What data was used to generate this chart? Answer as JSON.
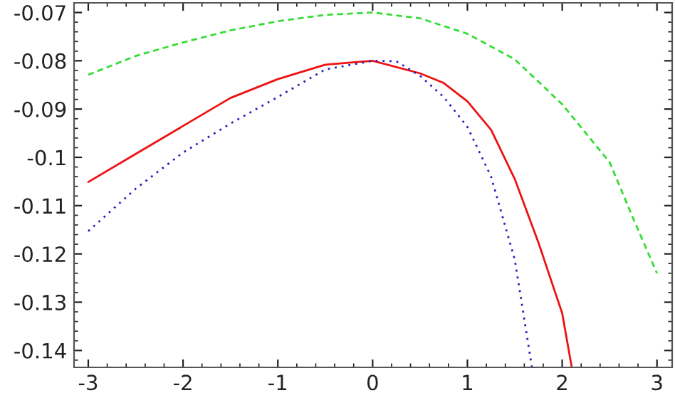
{
  "chart_data": {
    "type": "line",
    "series": [
      {
        "color": "#33dd33",
        "line_style": "dashed",
        "x": [
          -3,
          -2.5,
          -2,
          -1.5,
          -1,
          -0.5,
          0,
          0.5,
          1,
          1.5,
          2,
          2.5,
          2.75,
          3
        ],
        "values": [
          -0.0829,
          -0.079,
          -0.0762,
          -0.0737,
          -0.0718,
          -0.0705,
          -0.07,
          -0.0712,
          -0.0744,
          -0.0797,
          -0.089,
          -0.101,
          -0.1127,
          -0.124
        ]
      },
      {
        "color": "#ee1111",
        "line_style": "solid",
        "x": [
          -3,
          -2.5,
          -2,
          -1.5,
          -1,
          -0.5,
          0,
          0.5,
          0.75,
          1,
          1.25,
          1.5,
          1.75,
          2,
          2.1
        ],
        "values": [
          -0.1051,
          -0.0993,
          -0.0935,
          -0.0877,
          -0.0838,
          -0.0808,
          -0.08,
          -0.0826,
          -0.0846,
          -0.0884,
          -0.0943,
          -0.1045,
          -0.1177,
          -0.1323,
          -0.1434
        ]
      },
      {
        "color": "#2222bb",
        "line_style": "dotted",
        "x": [
          -3,
          -2.5,
          -2,
          -1.5,
          -1,
          -0.5,
          0,
          0.25,
          0.5,
          0.75,
          1,
          1.25,
          1.5,
          1.68
        ],
        "values": [
          -0.1153,
          -0.1065,
          -0.099,
          -0.093,
          -0.0875,
          -0.0818,
          -0.08,
          -0.0801,
          -0.0831,
          -0.0875,
          -0.0937,
          -0.104,
          -0.1212,
          -0.1434
        ]
      }
    ],
    "xlim": [
      -3.15,
      3.16
    ],
    "ylim": [
      -0.1435,
      -0.068
    ],
    "xticks": [
      -3,
      -2,
      -1,
      0,
      1,
      2,
      3
    ],
    "yticks": [
      -0.14,
      -0.13,
      -0.12,
      -0.11,
      -0.1,
      -0.09,
      -0.08,
      -0.07
    ],
    "grid": false,
    "legend": false,
    "marker": "none"
  }
}
